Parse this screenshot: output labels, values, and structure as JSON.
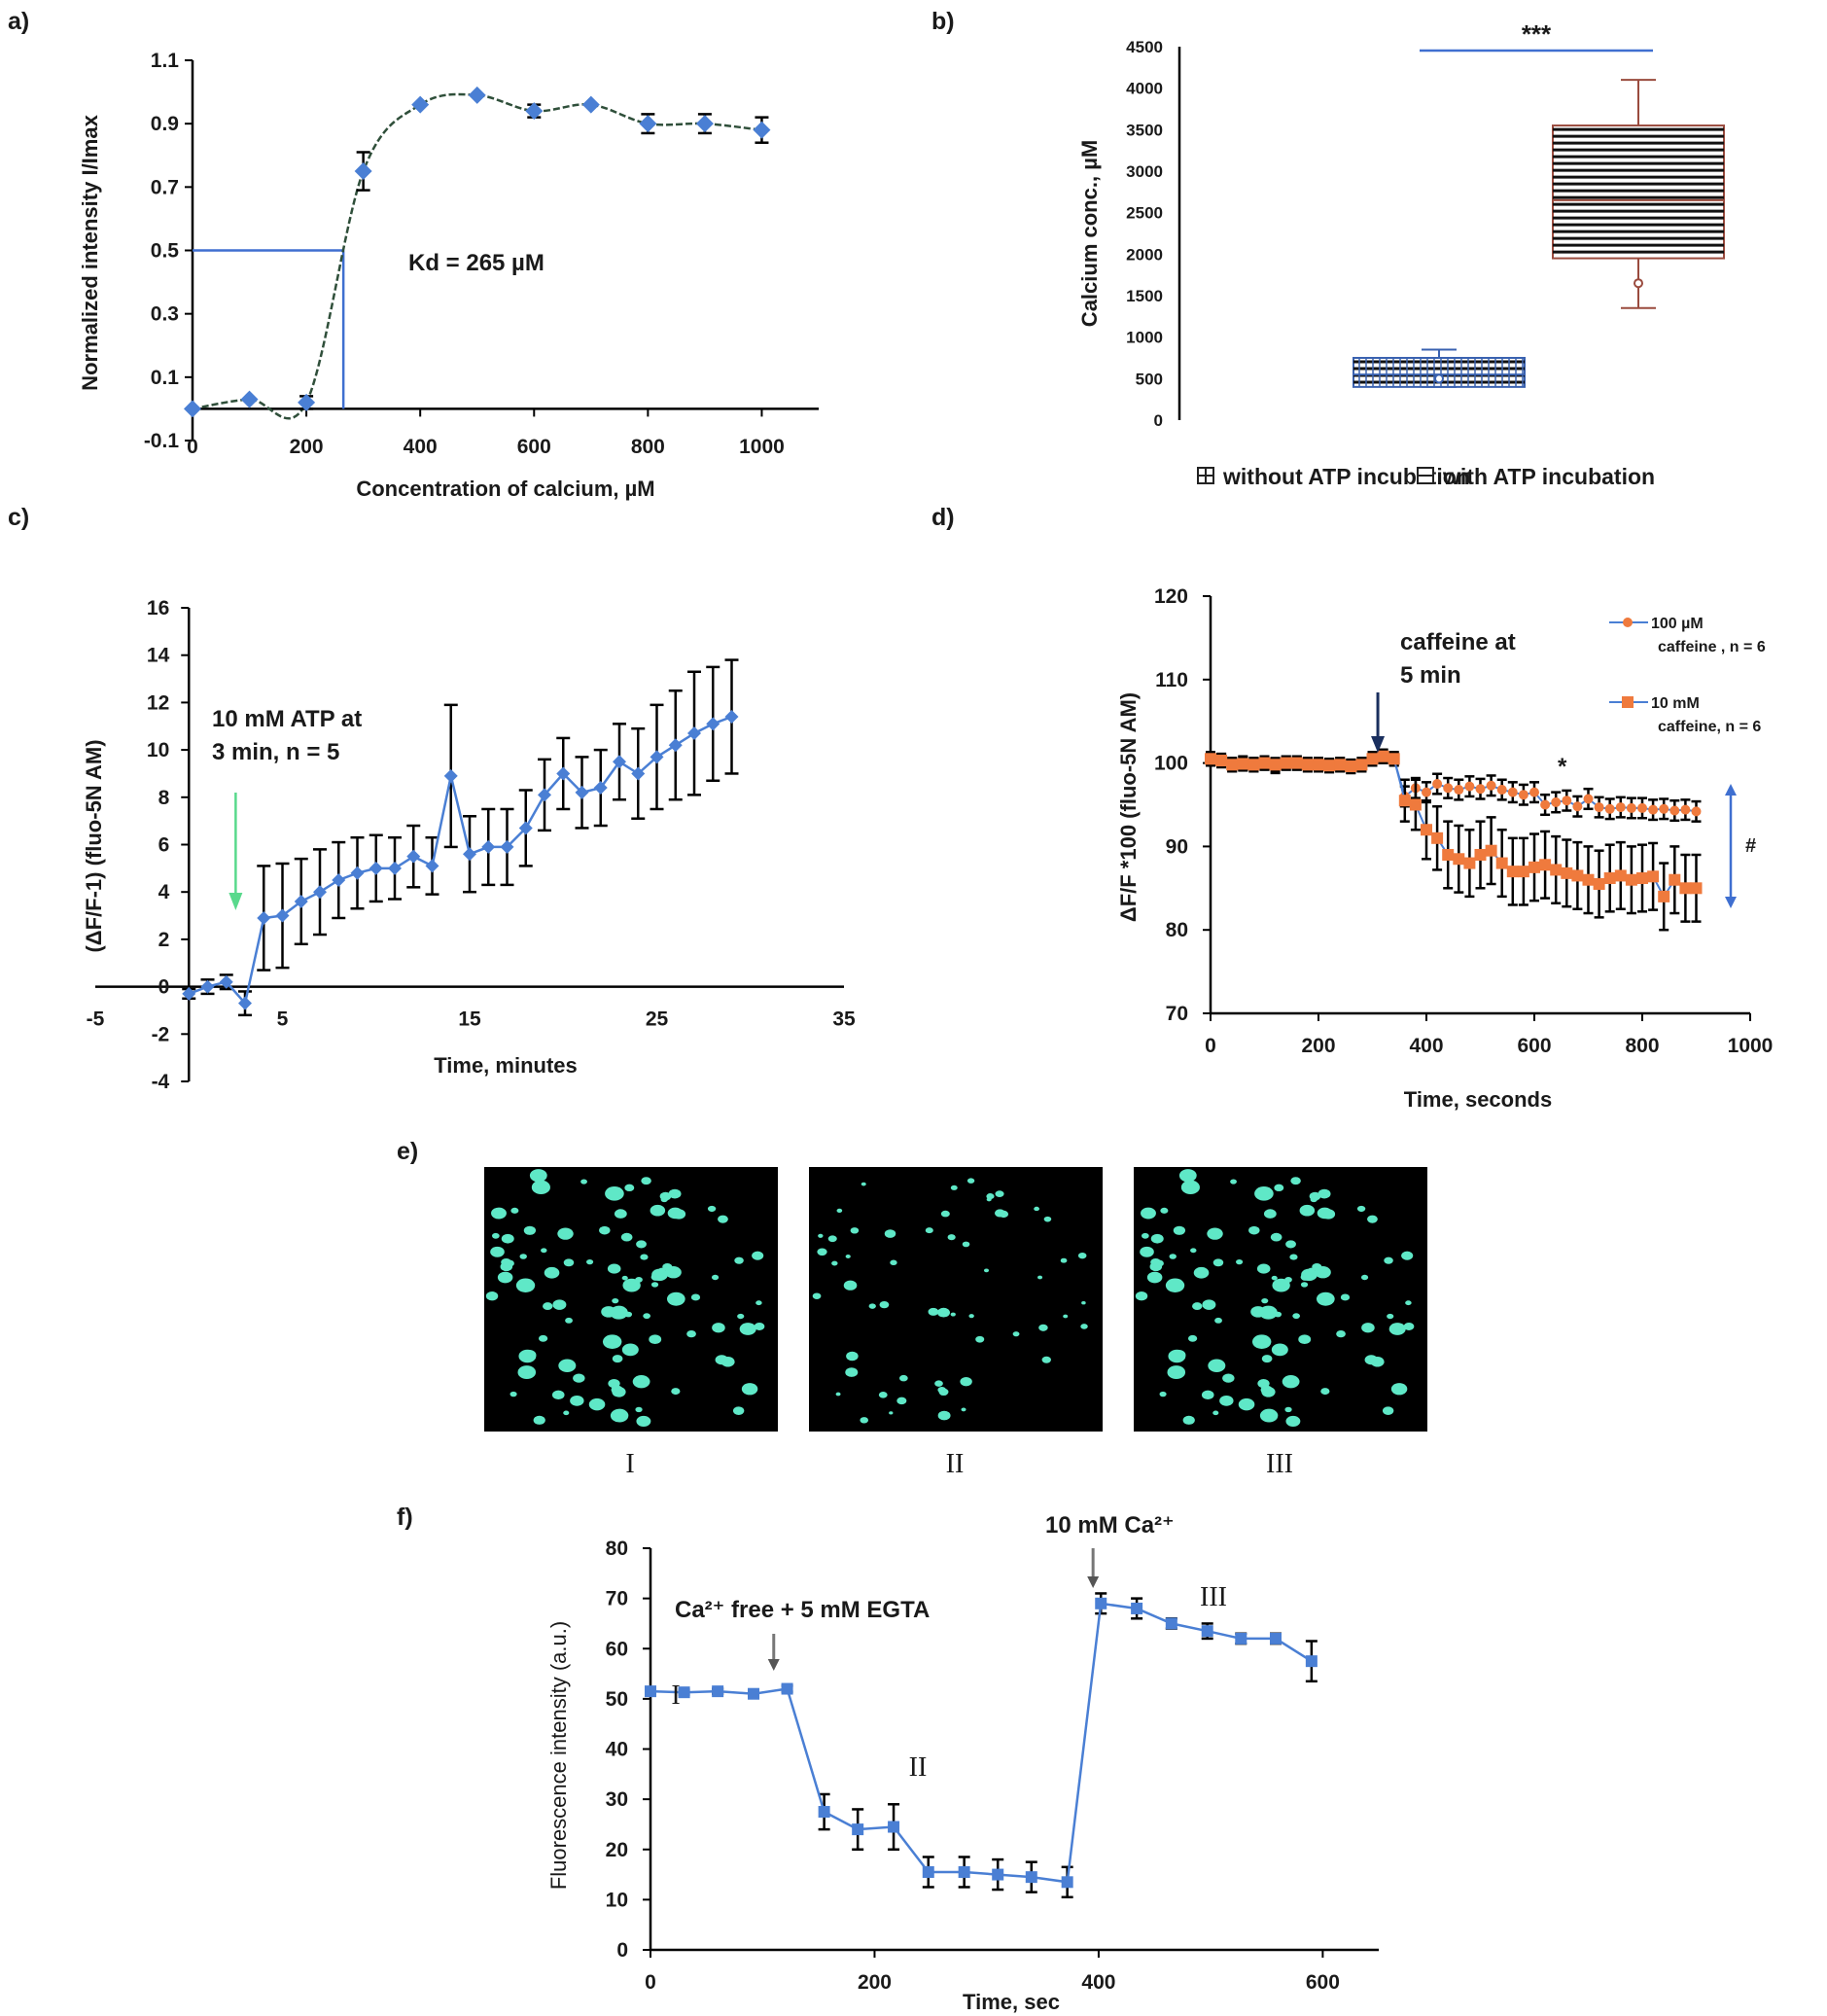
{
  "panel_labels": [
    "a)",
    "b)",
    "c)",
    "d)",
    "e)",
    "f)"
  ],
  "chart_data": [
    {
      "panel": "a)",
      "type": "line",
      "xlabel": "Concentration of calcium, µM",
      "ylabel": "Normalized intensity I/Imax",
      "xlim": [
        0,
        1100
      ],
      "ylim": [
        -0.1,
        1.1
      ],
      "xticks": [
        "0",
        "200",
        "400",
        "600",
        "800",
        "1000"
      ],
      "yticks": [
        "-0.1",
        "0.1",
        "0.3",
        "0.5",
        "0.7",
        "0.9",
        "1.1"
      ],
      "x": [
        0,
        100,
        200,
        300,
        400,
        500,
        600,
        700,
        800,
        900,
        1000
      ],
      "y": [
        0.0,
        0.03,
        0.02,
        0.75,
        0.96,
        0.99,
        0.94,
        0.96,
        0.9,
        0.9,
        0.88
      ],
      "err": [
        0,
        0,
        0.02,
        0.06,
        0,
        0,
        0.02,
        0,
        0.03,
        0.03,
        0.04
      ],
      "color": "#4a7fd4",
      "kd_x": 265,
      "kd_y": 0.5,
      "annotation": "Kd = 265 µM"
    },
    {
      "panel": "b)",
      "type": "box",
      "ylabel": "Calcium conc., µM",
      "ylim": [
        0,
        4500
      ],
      "yticks": [
        "0",
        "500",
        "1000",
        "1500",
        "2000",
        "2500",
        "3000",
        "3500",
        "4000",
        "4500"
      ],
      "groups": [
        {
          "name": "without ATP incubation",
          "min": 400,
          "q1": 400,
          "median": 550,
          "q3": 750,
          "max": 850,
          "mean": 500,
          "color": "#3a62b0"
        },
        {
          "name": "with ATP incubation",
          "min": 1350,
          "q1": 1950,
          "median": 2650,
          "q3": 3550,
          "max": 4100,
          "mean": 1650,
          "color": "#9a4b3e"
        }
      ],
      "significance": "***"
    },
    {
      "panel": "c)",
      "type": "line",
      "xlabel": "Time, minutes",
      "ylabel": "(ΔF/F-1) (fluo-5N AM)",
      "xlim": [
        -5,
        35
      ],
      "ylim": [
        -4,
        16
      ],
      "xticks": [
        "-5",
        "5",
        "15",
        "25",
        "35"
      ],
      "yticks": [
        "-4",
        "-2",
        "0",
        "2",
        "4",
        "6",
        "8",
        "10",
        "12",
        "14",
        "16"
      ],
      "x": [
        0,
        1,
        2,
        3,
        4,
        5,
        6,
        7,
        8,
        9,
        10,
        11,
        12,
        13,
        14,
        15,
        16,
        17,
        18,
        19,
        20,
        21,
        22,
        23,
        24,
        25,
        26,
        27,
        28,
        29
      ],
      "y": [
        -0.3,
        0.0,
        0.2,
        -0.7,
        2.9,
        3.0,
        3.6,
        4.0,
        4.5,
        4.8,
        5.0,
        5.0,
        5.5,
        5.1,
        8.9,
        5.6,
        5.9,
        5.9,
        6.7,
        8.1,
        9.0,
        8.2,
        8.4,
        9.5,
        9.0,
        9.7,
        10.2,
        10.7,
        11.1,
        11.4
      ],
      "err": [
        0.2,
        0.3,
        0.3,
        0.5,
        2.2,
        2.2,
        1.8,
        1.8,
        1.6,
        1.5,
        1.4,
        1.3,
        1.3,
        1.2,
        3.0,
        1.6,
        1.6,
        1.6,
        1.6,
        1.5,
        1.5,
        1.5,
        1.6,
        1.6,
        1.9,
        2.2,
        2.3,
        2.6,
        2.4,
        2.4
      ],
      "color": "#4a7fd4",
      "annotation": [
        "10 mM ATP at",
        "3 min, n = 5"
      ],
      "arrow_x": 2.5,
      "arrow_color": "#59d98c"
    },
    {
      "panel": "d)",
      "type": "line",
      "xlabel": "Time, seconds",
      "ylabel": "ΔF/F *100 (fluo-5N AM)",
      "xlim": [
        0,
        1000
      ],
      "ylim": [
        70,
        120
      ],
      "xticks": [
        "0",
        "200",
        "400",
        "600",
        "800",
        "1000"
      ],
      "yticks": [
        "70",
        "80",
        "90",
        "100",
        "110",
        "120"
      ],
      "x": [
        0,
        20,
        40,
        60,
        80,
        100,
        120,
        140,
        160,
        180,
        200,
        220,
        240,
        260,
        280,
        300,
        320,
        340,
        360,
        380,
        400,
        420,
        440,
        460,
        480,
        500,
        520,
        540,
        560,
        580,
        600,
        620,
        640,
        660,
        680,
        700,
        720,
        740,
        760,
        780,
        800,
        820,
        840,
        860,
        880,
        900
      ],
      "series": [
        {
          "name": "100 µM caffeine , n = 6",
          "marker": "circle",
          "color": "#ef7a3d",
          "y": [
            100.5,
            100.3,
            99.8,
            100,
            99.8,
            100,
            99.6,
            100,
            100,
            99.8,
            99.8,
            99.7,
            99.8,
            99.6,
            99.8,
            100.5,
            100.8,
            100.5,
            96,
            97,
            96.5,
            97.5,
            97,
            96.8,
            97.2,
            96.9,
            97.3,
            96.8,
            96.5,
            96.2,
            96.5,
            95,
            95.3,
            95.5,
            94.8,
            95.7,
            94.7,
            94.5,
            94.7,
            94.6,
            94.6,
            94.4,
            94.5,
            94.3,
            94.4,
            94.2
          ],
          "err": [
            0.8,
            0.8,
            0.8,
            0.8,
            0.8,
            0.8,
            0.8,
            0.8,
            0.8,
            0.8,
            0.8,
            0.8,
            0.8,
            0.8,
            0.8,
            0.8,
            0.8,
            0.8,
            1.2,
            1.2,
            1.2,
            1.2,
            1.2,
            1.2,
            1.2,
            1.2,
            1.2,
            1.2,
            1.2,
            1.2,
            1.2,
            1.2,
            1.2,
            1.2,
            1.2,
            1.2,
            1.2,
            1.2,
            1.2,
            1.2,
            1.2,
            1.2,
            1.2,
            1.2,
            1.2,
            1.2
          ]
        },
        {
          "name": "10 mM caffeine, n = 6",
          "marker": "square",
          "color": "#ef7a3d",
          "y": [
            100.5,
            100.3,
            99.8,
            99.9,
            99.8,
            100,
            99.8,
            100,
            100,
            99.8,
            99.8,
            99.7,
            99.8,
            99.6,
            99.8,
            100.5,
            100.8,
            100.5,
            95.5,
            95,
            92,
            91,
            89,
            88.5,
            88,
            89,
            89.5,
            88,
            87,
            87,
            87.5,
            87.8,
            87.2,
            86.8,
            86.5,
            86,
            85.5,
            86.2,
            86.5,
            86,
            86.2,
            86.4,
            84,
            86,
            85,
            85
          ],
          "err": [
            0.8,
            0.8,
            0.8,
            0.8,
            0.8,
            0.8,
            0.8,
            0.8,
            0.8,
            0.8,
            0.8,
            0.8,
            0.8,
            0.8,
            0.8,
            0.8,
            0.8,
            0.8,
            2.5,
            3.0,
            3.5,
            3.8,
            4.0,
            4.0,
            4.0,
            4.0,
            4.0,
            4.0,
            4.0,
            4.0,
            4.0,
            4.0,
            4.0,
            4.0,
            4.0,
            4.0,
            4.0,
            4.0,
            4.0,
            4.0,
            4.0,
            4.0,
            4.0,
            4.0,
            4.0,
            4.0
          ]
        }
      ],
      "annotation": [
        "caffeine at",
        "5 min"
      ],
      "arrow_x": 310,
      "star": "*",
      "hash": "#"
    },
    {
      "panel": "f)",
      "type": "line",
      "xlabel": "Time, sec",
      "ylabel": "Fluorescence intensity (a.u.)",
      "xlim": [
        0,
        650
      ],
      "ylim": [
        0,
        80
      ],
      "xticks": [
        "0",
        "200",
        "400",
        "600"
      ],
      "yticks": [
        "0",
        "10",
        "20",
        "30",
        "40",
        "50",
        "60",
        "70",
        "80"
      ],
      "x": [
        0,
        30,
        60,
        92,
        122,
        155,
        185,
        217,
        248,
        280,
        310,
        340,
        372,
        402,
        434,
        465,
        497,
        527,
        558,
        590
      ],
      "y": [
        51.5,
        51.3,
        51.5,
        51,
        52,
        27.5,
        24,
        24.5,
        15.5,
        15.5,
        15,
        14.5,
        13.5,
        69,
        68,
        65,
        63.5,
        62,
        62,
        57.5
      ],
      "err": [
        0.6,
        0.5,
        0.5,
        0.5,
        0.6,
        3.5,
        4,
        4.5,
        3,
        3,
        3,
        3,
        3,
        2,
        2,
        1,
        1.5,
        1,
        1,
        4
      ],
      "color": "#4a7fd4",
      "labels": [
        "I",
        "II",
        "III"
      ],
      "annotation_1": "Ca²⁺ free + 5 mM EGTA",
      "annotation_2": "10 mM Ca²⁺",
      "arrow1_x": 110,
      "arrow2_x": 395
    }
  ],
  "images": {
    "labels": [
      "I",
      "II",
      "III"
    ],
    "background": "#000000",
    "spot_color": "#5fe8c7"
  }
}
